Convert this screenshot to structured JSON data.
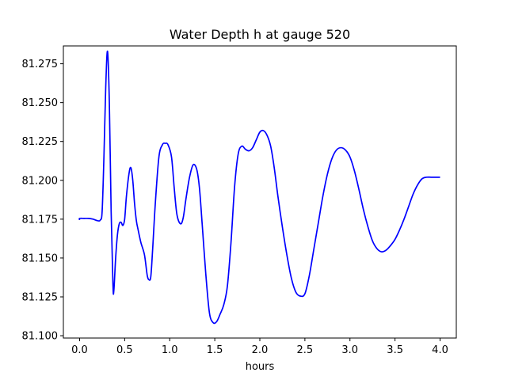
{
  "chart_data": {
    "type": "line",
    "title": "Water Depth h at gauge 520",
    "xlabel": "hours",
    "ylabel": "",
    "xlim": [
      -0.18,
      4.18
    ],
    "ylim": [
      81.0985,
      81.2865
    ],
    "xticks": [
      0.0,
      0.5,
      1.0,
      1.5,
      2.0,
      2.5,
      3.0,
      3.5,
      4.0
    ],
    "xtick_labels": [
      "0.0",
      "0.5",
      "1.0",
      "1.5",
      "2.0",
      "2.5",
      "3.0",
      "3.5",
      "4.0"
    ],
    "yticks": [
      81.1,
      81.125,
      81.15,
      81.175,
      81.2,
      81.225,
      81.25,
      81.275
    ],
    "ytick_labels": [
      "81.100",
      "81.125",
      "81.150",
      "81.175",
      "81.200",
      "81.225",
      "81.250",
      "81.275"
    ],
    "grid": false,
    "series": [
      {
        "color": "#0000ff",
        "x": [
          0.0,
          0.0,
          0.05,
          0.1,
          0.15,
          0.2,
          0.23,
          0.25,
          0.27,
          0.29,
          0.31,
          0.33,
          0.35,
          0.37,
          0.38,
          0.4,
          0.42,
          0.44,
          0.46,
          0.48,
          0.5,
          0.52,
          0.55,
          0.57,
          0.59,
          0.61,
          0.63,
          0.65,
          0.68,
          0.72,
          0.75,
          0.77,
          0.79,
          0.81,
          0.84,
          0.88,
          0.92,
          0.95,
          0.98,
          1.02,
          1.05,
          1.08,
          1.12,
          1.15,
          1.18,
          1.22,
          1.26,
          1.3,
          1.33,
          1.36,
          1.4,
          1.44,
          1.48,
          1.52,
          1.56,
          1.6,
          1.64,
          1.68,
          1.72,
          1.76,
          1.8,
          1.84,
          1.88,
          1.92,
          1.96,
          2.0,
          2.04,
          2.08,
          2.12,
          2.16,
          2.2,
          2.25,
          2.3,
          2.35,
          2.4,
          2.45,
          2.5,
          2.55,
          2.6,
          2.65,
          2.7,
          2.75,
          2.8,
          2.85,
          2.9,
          2.95,
          3.0,
          3.05,
          3.1,
          3.15,
          3.2,
          3.25,
          3.3,
          3.35,
          3.4,
          3.45,
          3.5,
          3.55,
          3.6,
          3.65,
          3.7,
          3.75,
          3.8,
          3.85,
          3.9,
          3.95,
          4.0
        ],
        "y": [
          81.1745,
          81.1755,
          81.1755,
          81.1755,
          81.175,
          81.174,
          81.1745,
          81.18,
          81.215,
          81.26,
          81.283,
          81.25,
          81.18,
          81.133,
          81.129,
          81.15,
          81.165,
          81.172,
          81.173,
          81.171,
          81.175,
          81.19,
          81.205,
          81.208,
          81.2,
          81.185,
          81.174,
          81.168,
          81.16,
          81.152,
          81.139,
          81.136,
          81.138,
          81.155,
          81.185,
          81.215,
          81.223,
          81.2238,
          81.223,
          81.215,
          81.195,
          81.178,
          81.172,
          81.176,
          81.188,
          81.202,
          81.21,
          81.207,
          81.195,
          81.172,
          81.14,
          81.115,
          81.1085,
          81.109,
          81.114,
          81.12,
          81.132,
          81.16,
          81.196,
          81.217,
          81.222,
          81.22,
          81.219,
          81.221,
          81.226,
          81.231,
          81.232,
          81.229,
          81.222,
          81.208,
          81.19,
          81.17,
          81.152,
          81.137,
          81.128,
          81.1255,
          81.127,
          81.139,
          81.156,
          81.173,
          81.19,
          81.204,
          81.214,
          81.2195,
          81.221,
          81.2195,
          81.215,
          81.206,
          81.194,
          81.181,
          81.17,
          81.161,
          81.156,
          81.154,
          81.155,
          81.158,
          81.162,
          81.168,
          81.175,
          81.183,
          81.191,
          81.197,
          81.201,
          81.202,
          81.202,
          81.202,
          81.202
        ]
      }
    ]
  }
}
